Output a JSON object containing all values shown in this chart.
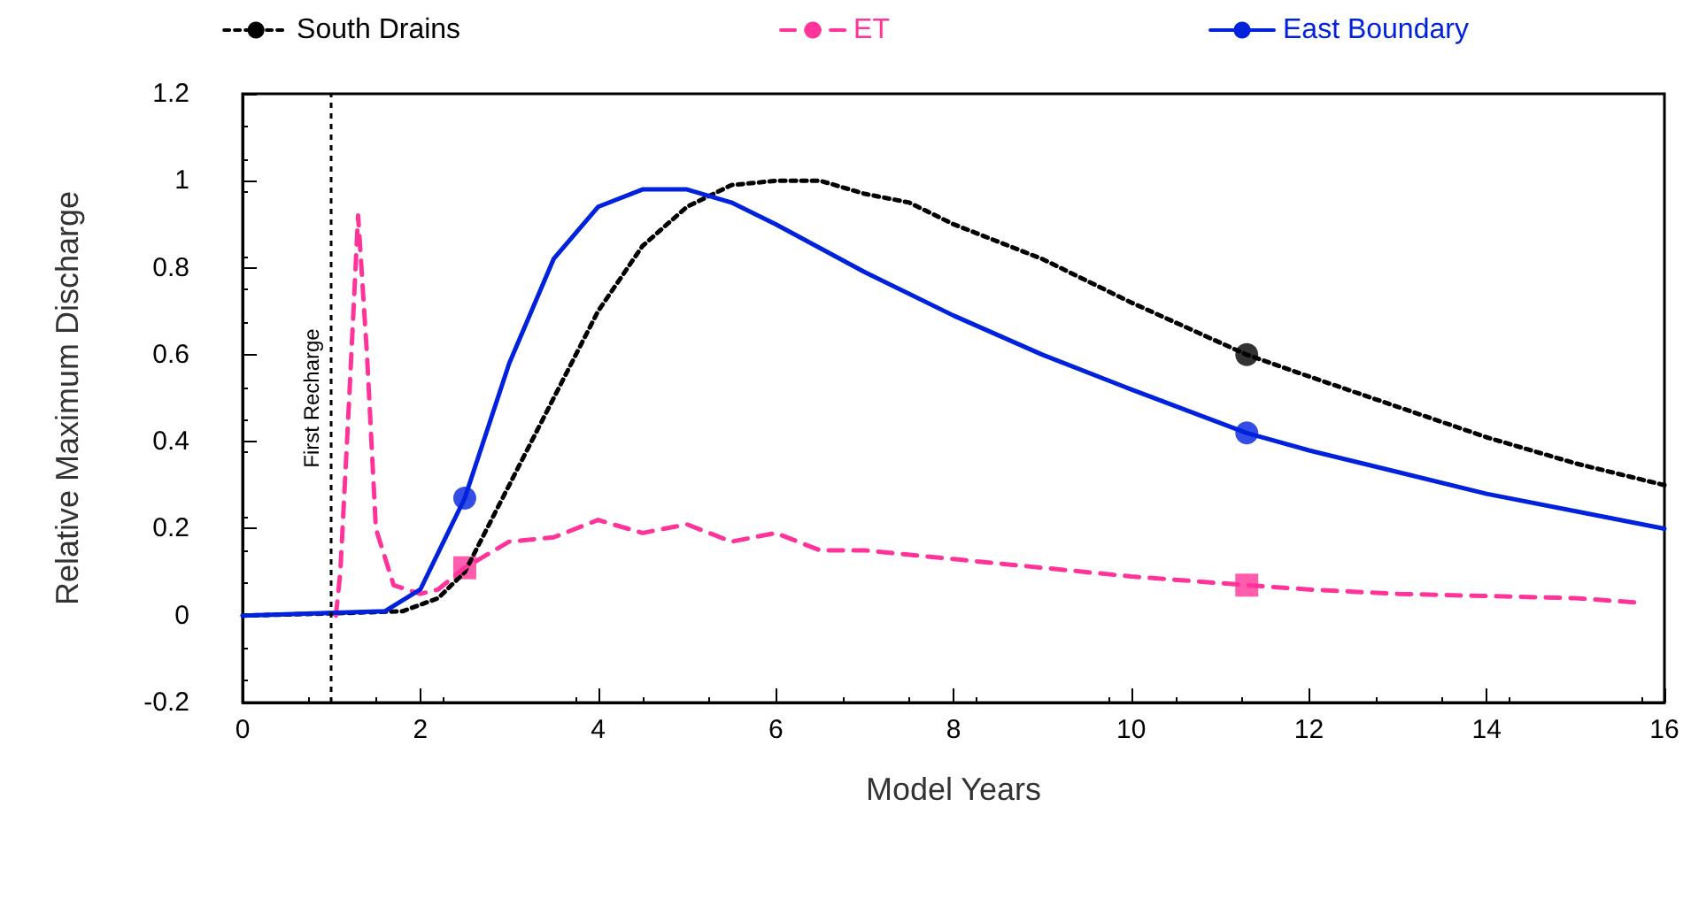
{
  "chart_data": {
    "type": "line",
    "xlabel": "Model Years",
    "ylabel": "Relative Maximum Discharge",
    "xlim": [
      0,
      16
    ],
    "xticks": [
      0,
      2,
      4,
      6,
      8,
      10,
      12,
      14,
      16
    ],
    "ylim": [
      -0.2,
      1.2
    ],
    "yticks": [
      -0.2,
      0,
      0.2,
      0.4,
      0.6,
      0.8,
      1,
      1.2
    ],
    "grid": false,
    "legend": "top",
    "ref_lines": [
      {
        "axis": "x",
        "value": 1,
        "label": "First Recharge",
        "color": "#000000",
        "line_style": "dotted"
      }
    ],
    "series": [
      {
        "name": "South Drains",
        "color": "#000000",
        "line_style": "dotted",
        "x": [
          0,
          1,
          1.8,
          2.2,
          2.5,
          3,
          3.5,
          4,
          4.5,
          5,
          5.5,
          6,
          6.5,
          7,
          7.5,
          8,
          9,
          10,
          11.3,
          12,
          13,
          14,
          15,
          16
        ],
        "values": [
          0,
          0.005,
          0.01,
          0.04,
          0.1,
          0.3,
          0.5,
          0.7,
          0.85,
          0.94,
          0.99,
          1.0,
          1.0,
          0.97,
          0.95,
          0.9,
          0.82,
          0.72,
          0.6,
          0.55,
          0.48,
          0.41,
          0.35,
          0.3
        ]
      },
      {
        "name": "ET",
        "color": "#ff3399",
        "line_style": "dashed",
        "x": [
          1.05,
          1.1,
          1.2,
          1.3,
          1.4,
          1.5,
          1.7,
          2,
          2.2,
          2.5,
          3,
          3.5,
          4,
          4.5,
          5,
          5.5,
          6,
          6.5,
          7,
          8,
          9,
          10,
          11.3,
          12,
          13,
          14,
          15,
          15.7
        ],
        "values": [
          0,
          0.1,
          0.5,
          0.92,
          0.6,
          0.2,
          0.07,
          0.05,
          0.06,
          0.11,
          0.17,
          0.18,
          0.22,
          0.19,
          0.21,
          0.17,
          0.19,
          0.15,
          0.15,
          0.13,
          0.11,
          0.09,
          0.07,
          0.06,
          0.05,
          0.045,
          0.04,
          0.03
        ]
      },
      {
        "name": "East Boundary",
        "color": "#0022dd",
        "line_style": "solid",
        "x": [
          0,
          1.6,
          2,
          2.5,
          3,
          3.5,
          4,
          4.5,
          5,
          5.5,
          6,
          7,
          8,
          9,
          10,
          11.3,
          12,
          13,
          14,
          15,
          16
        ],
        "values": [
          0,
          0.01,
          0.06,
          0.27,
          0.58,
          0.82,
          0.94,
          0.98,
          0.98,
          0.95,
          0.9,
          0.79,
          0.69,
          0.6,
          0.52,
          0.42,
          0.38,
          0.33,
          0.28,
          0.24,
          0.2
        ]
      },
      {
        "type": "scatter",
        "color": "#000000",
        "marker": "circle",
        "x": [
          11.3
        ],
        "values": [
          0.6
        ]
      },
      {
        "type": "scatter",
        "color": "#ff3399",
        "marker": "square",
        "x": [
          2.5,
          11.3
        ],
        "values": [
          0.11,
          0.07
        ]
      },
      {
        "type": "scatter",
        "color": "#0022dd",
        "marker": "circle",
        "x": [
          2.5,
          11.3
        ],
        "values": [
          0.27,
          0.42
        ]
      }
    ]
  }
}
